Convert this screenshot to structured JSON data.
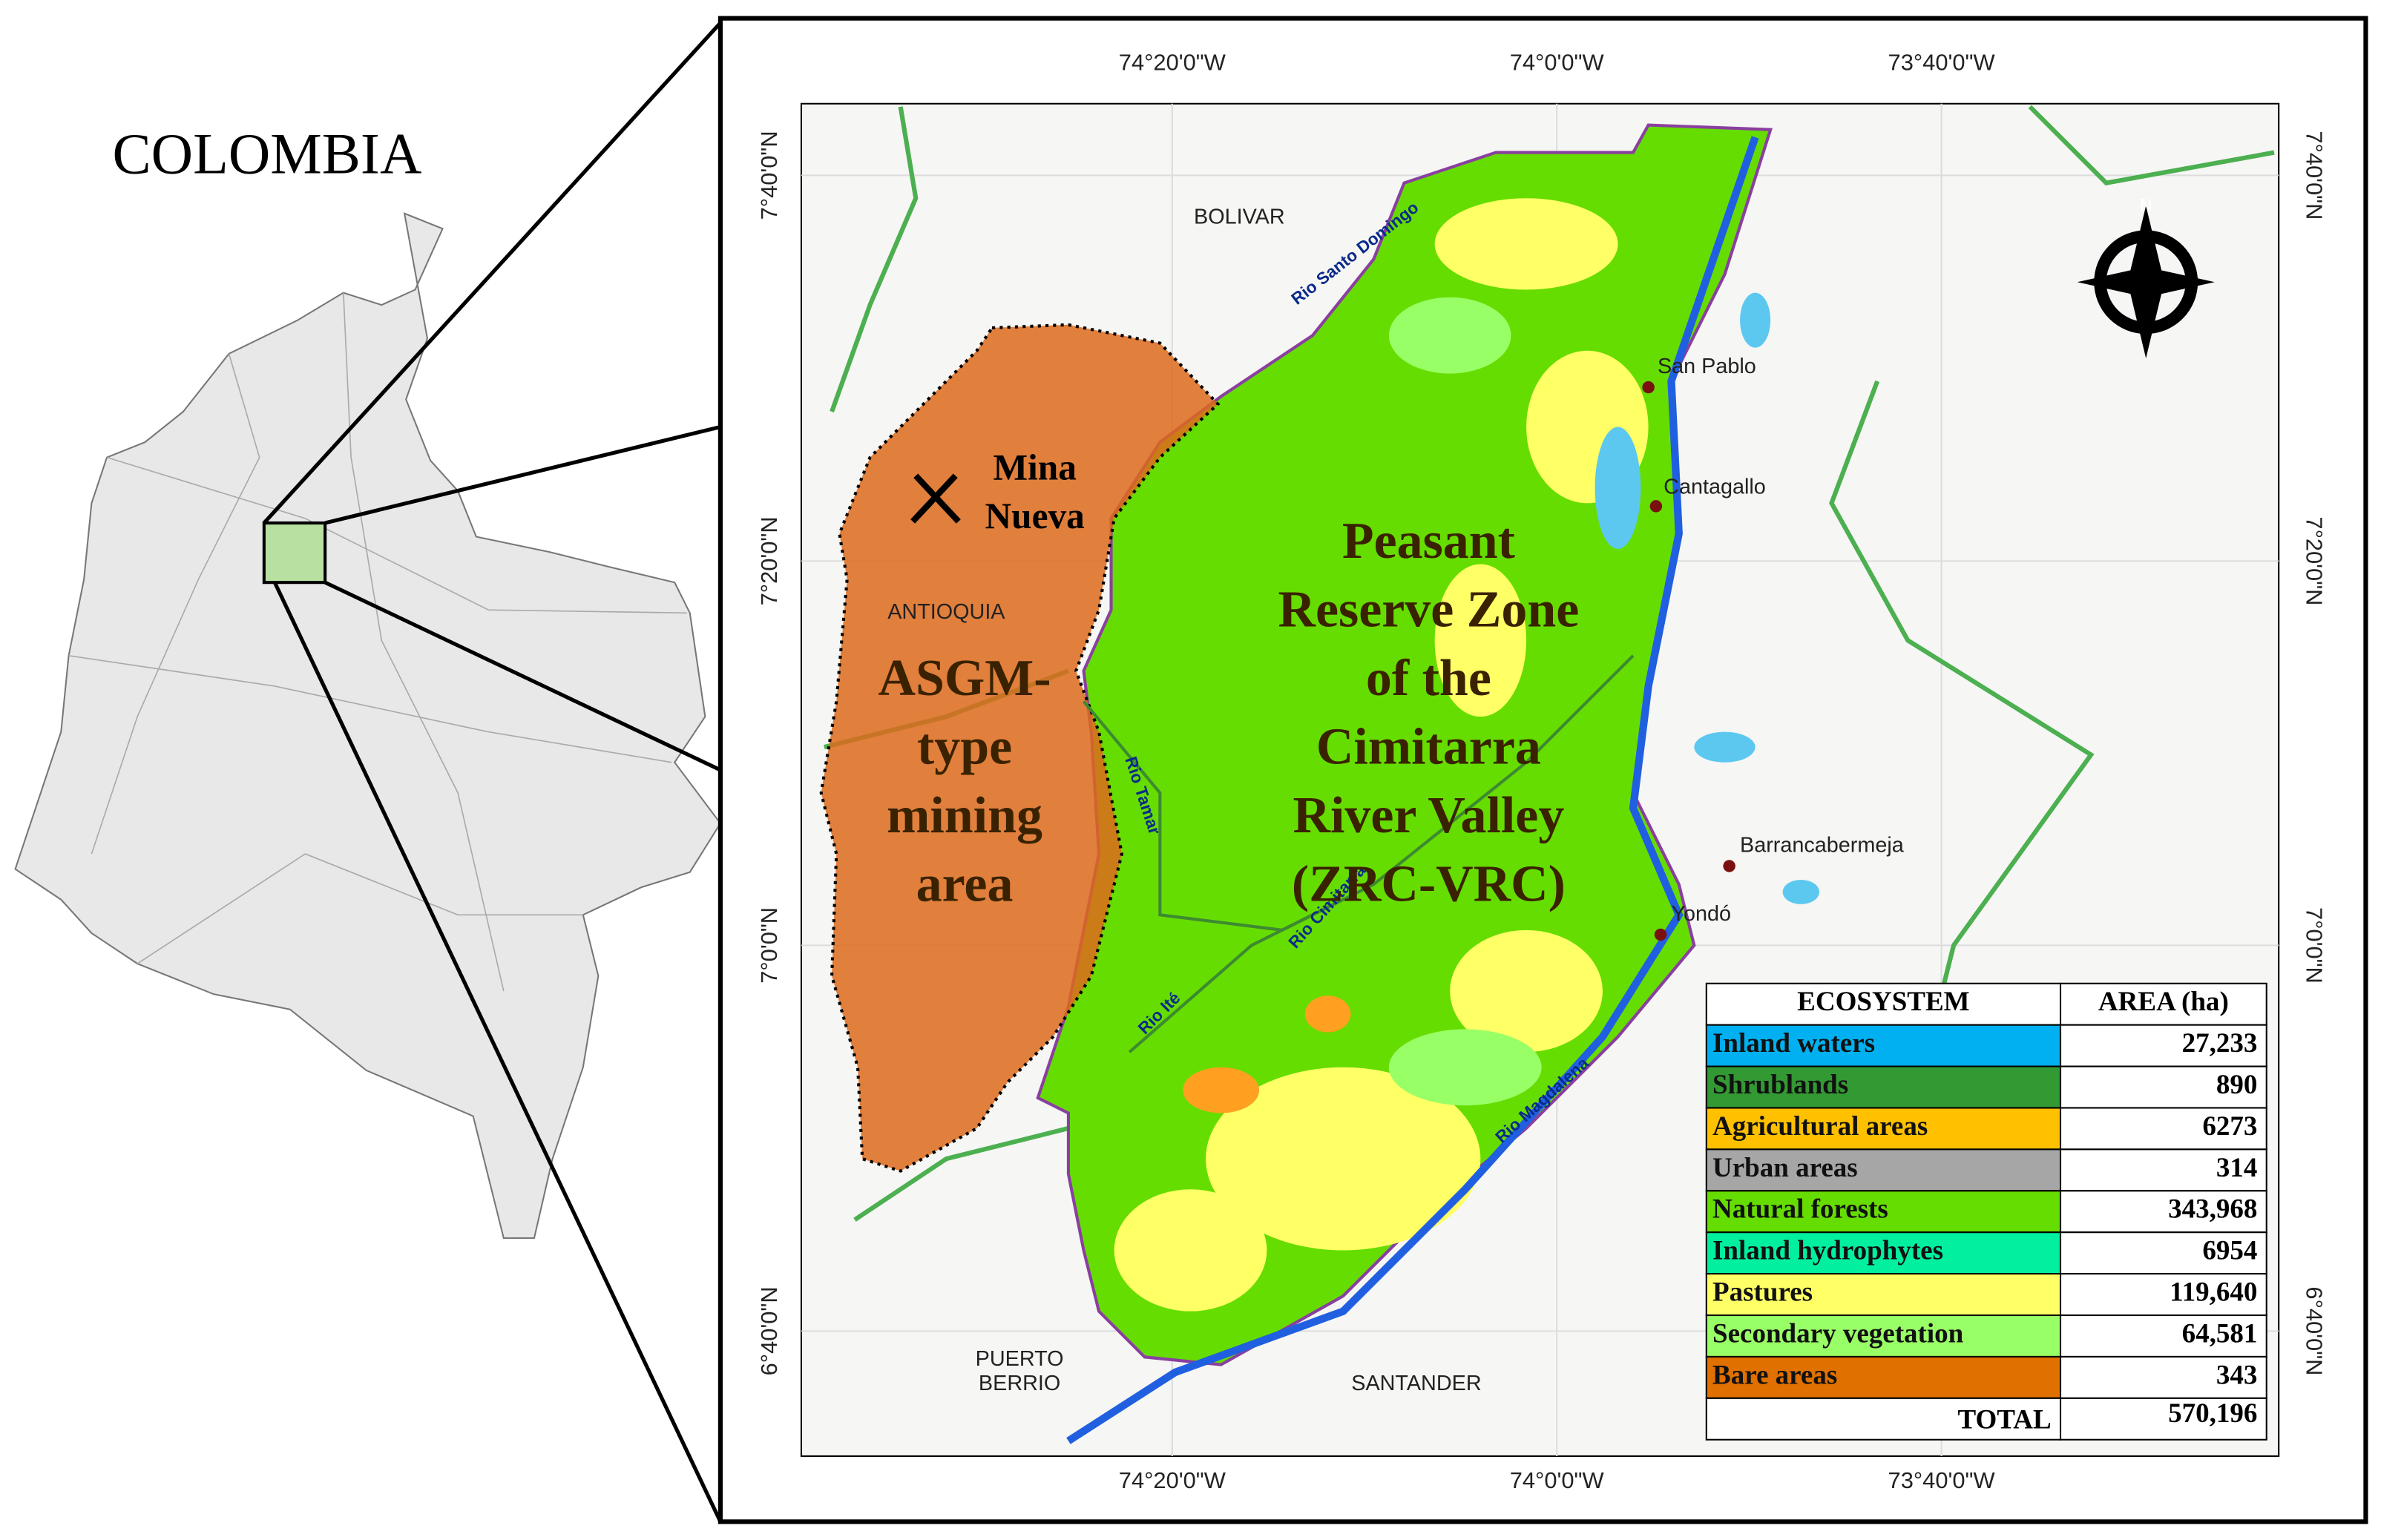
{
  "inset": {
    "title": "COLOMBIA"
  },
  "map": {
    "longitudes": [
      "74°20'0\"W",
      "74°0'0\"W",
      "73°40'0\"W"
    ],
    "latitudes": [
      "7°40'0\"N",
      "7°20'0\"N",
      "7°0'0\"N",
      "6°40'0\"N"
    ],
    "departments": [
      "BOLIVAR",
      "ANTIOQUIA",
      "SANTANDER"
    ],
    "puerto_berrio": [
      "PUERTO",
      "BERRIO"
    ],
    "towns": [
      "San Pablo",
      "Cantagallo",
      "Barrancabermeja",
      "Yondó"
    ],
    "rivers": [
      "Rio Santo Domingo",
      "Rio Magdalena",
      "Rio Tamar",
      "Rio Cimitarra",
      "Rio Ité"
    ],
    "mine": [
      "Mina",
      "Nueva"
    ],
    "mining_area": [
      "ASGM-",
      "type",
      "mining",
      "area"
    ],
    "reserve": [
      "Peasant",
      "Reserve Zone",
      "of the",
      "Cimitarra",
      "River Valley",
      "(ZRC-VRC)"
    ]
  },
  "table": {
    "header": [
      "ECOSYSTEM",
      "AREA (ha)"
    ],
    "rows": [
      {
        "name": "Inland waters",
        "area": "27,233",
        "color": "#00b0f0"
      },
      {
        "name": "Shrublands",
        "area": "890",
        "color": "#339933"
      },
      {
        "name": "Agricultural areas",
        "area": "6273",
        "color": "#ffc000"
      },
      {
        "name": "Urban areas",
        "area": "314",
        "color": "#a6a6a6"
      },
      {
        "name": "Natural forests",
        "area": "343,968",
        "color": "#66dd00"
      },
      {
        "name": "Inland hydrophytes",
        "area": "6954",
        "color": "#00f0a0"
      },
      {
        "name": "Pastures",
        "area": "119,640",
        "color": "#ffff66"
      },
      {
        "name": "Secondary vegetation",
        "area": "64,581",
        "color": "#99ff66"
      },
      {
        "name": "Bare areas",
        "area": "343",
        "color": "#e07000"
      }
    ],
    "total": [
      "TOTAL",
      "570,196"
    ]
  }
}
